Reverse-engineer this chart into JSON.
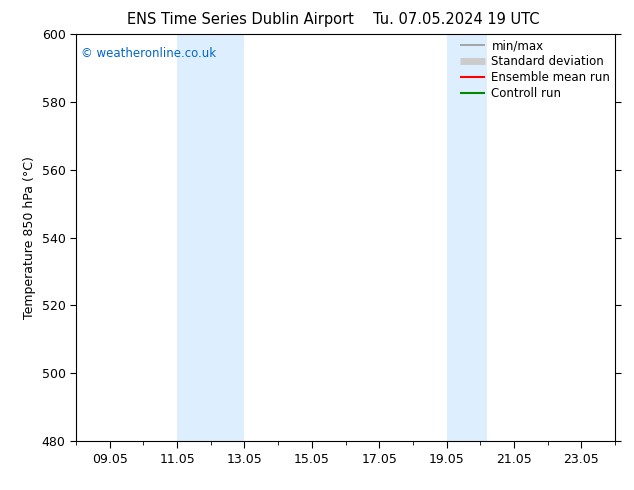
{
  "title": "ENS Time Series Dublin Airport",
  "title2": "Tu. 07.05.2024 19 UTC",
  "ylabel": "Temperature 850 hPa (°C)",
  "watermark": "© weatheronline.co.uk",
  "watermark_color": "#0066cc",
  "ylim": [
    480,
    600
  ],
  "yticks": [
    480,
    500,
    520,
    540,
    560,
    580,
    600
  ],
  "xtick_labels": [
    "09.05",
    "11.05",
    "13.05",
    "15.05",
    "17.05",
    "19.05",
    "21.05",
    "23.05"
  ],
  "xtick_positions": [
    0,
    2,
    4,
    6,
    8,
    10,
    12,
    14
  ],
  "xmin": -1,
  "xmax": 15,
  "shaded_bands": [
    {
      "xmin": 2,
      "xmax": 4,
      "color": "#ddeeff"
    },
    {
      "xmin": 10,
      "xmax": 11.2,
      "color": "#ddeeff"
    }
  ],
  "legend_entries": [
    {
      "label": "min/max",
      "color": "#999999",
      "lw": 1.2,
      "kind": "line"
    },
    {
      "label": "Standard deviation",
      "color": "#cccccc",
      "lw": 5,
      "kind": "line"
    },
    {
      "label": "Ensemble mean run",
      "color": "#ff0000",
      "lw": 1.5,
      "kind": "line"
    },
    {
      "label": "Controll run",
      "color": "#008800",
      "lw": 1.5,
      "kind": "line"
    }
  ],
  "bg_color": "#ffffff",
  "spine_color": "#000000",
  "title_fontsize": 10.5,
  "label_fontsize": 9,
  "tick_fontsize": 9,
  "watermark_fontsize": 8.5,
  "legend_fontsize": 8.5
}
